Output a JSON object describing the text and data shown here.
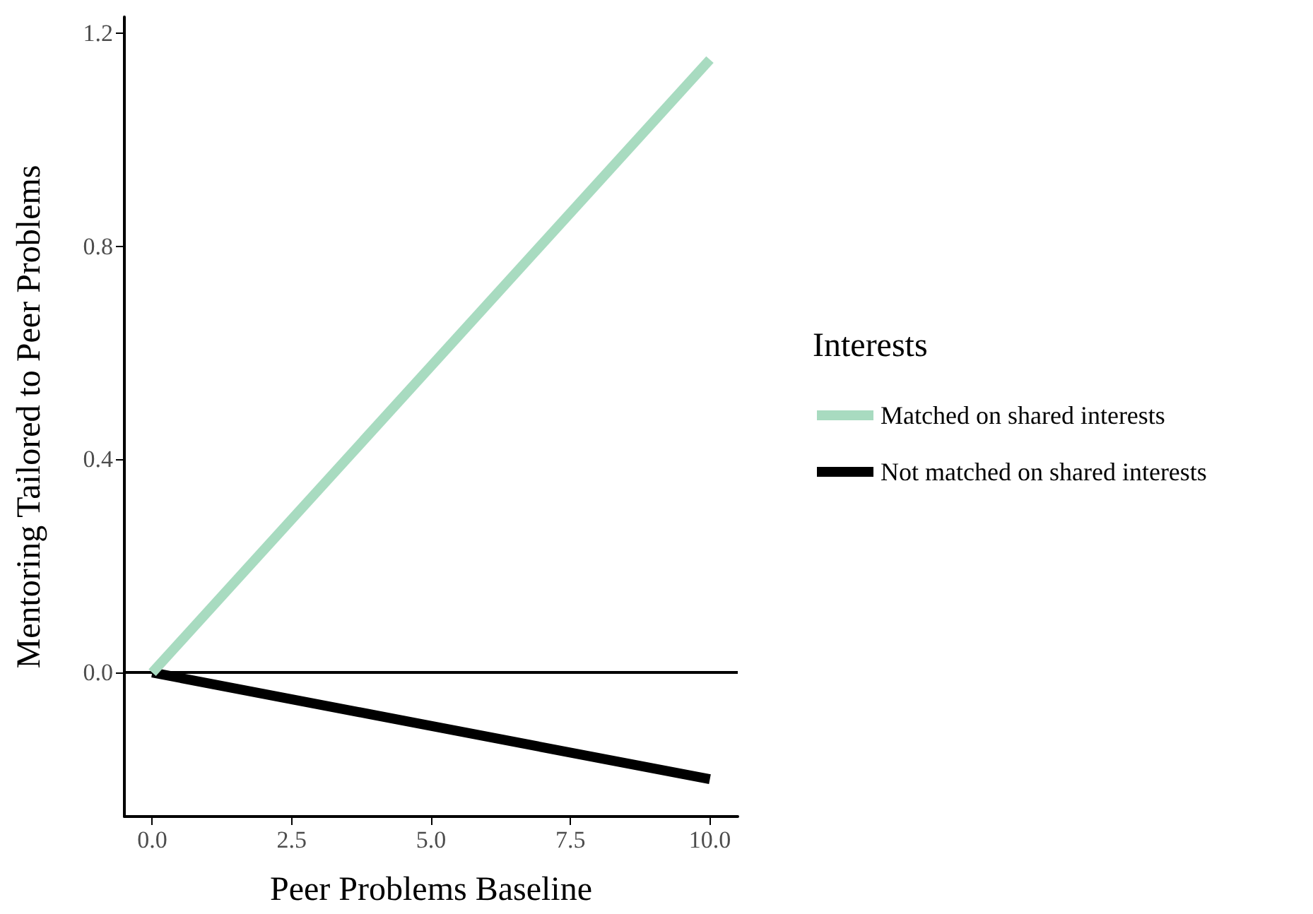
{
  "chart_data": {
    "type": "line",
    "xlabel": "Peer Problems Baseline",
    "ylabel": "Mentoring Tailored to Peer Problems",
    "legend_title": "Interests",
    "x": [
      0,
      10
    ],
    "series": [
      {
        "name": "Matched on shared interests",
        "color": "#a8dbc0",
        "values": [
          0,
          1.15
        ]
      },
      {
        "name": "Not matched on shared interests",
        "color": "#000000",
        "values": [
          0,
          -0.2
        ]
      }
    ],
    "xlim": [
      -0.5,
      10.5
    ],
    "ylim": [
      -0.27,
      1.23
    ],
    "xticks": [
      {
        "value": 0,
        "label": "0.0"
      },
      {
        "value": 2.5,
        "label": "2.5"
      },
      {
        "value": 5,
        "label": "5.0"
      },
      {
        "value": 7.5,
        "label": "7.5"
      },
      {
        "value": 10,
        "label": "10.0"
      }
    ],
    "yticks": [
      {
        "value": 0,
        "label": "0.0"
      },
      {
        "value": 0.4,
        "label": "0.4"
      },
      {
        "value": 0.8,
        "label": "0.8"
      },
      {
        "value": 1.2,
        "label": "1.2"
      }
    ],
    "ref_lines": [
      {
        "axis": "y",
        "value": 0,
        "color": "#000000",
        "line_style": "solid"
      }
    ],
    "grid": false,
    "legend": "right",
    "marker": "none",
    "line_style": "solid"
  }
}
